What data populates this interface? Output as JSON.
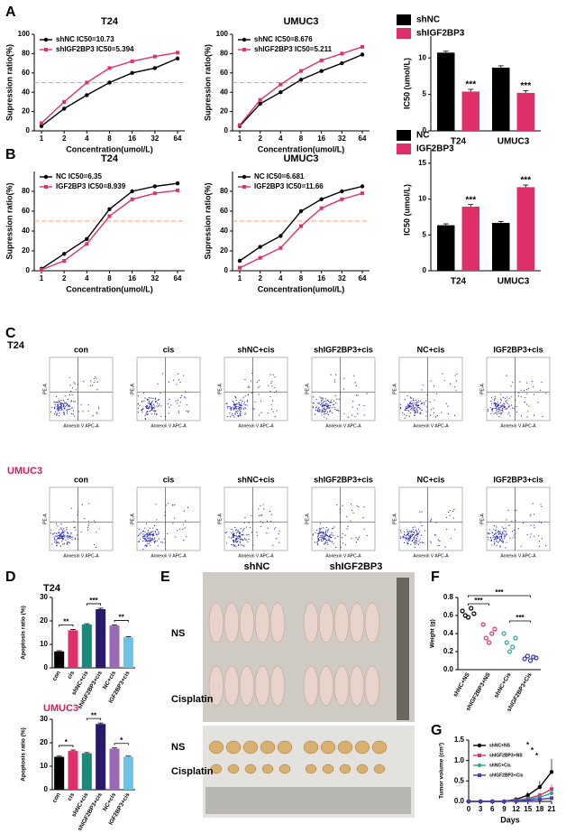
{
  "panels": [
    "A",
    "B",
    "C",
    "D",
    "E",
    "F",
    "G"
  ],
  "chart_data": [
    {
      "type": "line",
      "title": "T24",
      "categories": [
        "1",
        "2",
        "4",
        "8",
        "16",
        "32",
        "64"
      ],
      "xlabel": "Concentration(umol/L)",
      "ylabel": "Supression ratio(%)",
      "ylim": [
        0,
        100
      ],
      "yticks": [
        0,
        20,
        40,
        60,
        80,
        100
      ],
      "hline": 50,
      "hline_color": "#f0a070",
      "legend": "upper left",
      "series": [
        {
          "name": "shNC  IC50=10.73",
          "color": "#000000",
          "values": [
            5,
            23,
            37,
            50,
            60,
            65,
            75
          ]
        },
        {
          "name": "shIGF2BP3  IC50=5.394",
          "color": "#e0306a",
          "values": [
            8,
            30,
            50,
            65,
            72,
            77,
            81
          ]
        }
      ]
    },
    {
      "type": "line",
      "title": "UMUC3",
      "categories": [
        "1",
        "2",
        "4",
        "8",
        "16",
        "32",
        "64"
      ],
      "xlabel": "Concentration(umol/L)",
      "ylabel": "Supression ratio(%)",
      "ylim": [
        0,
        100
      ],
      "yticks": [
        0,
        20,
        40,
        60,
        80,
        100
      ],
      "hline": 50,
      "hline_color": "#f0a070",
      "legend": "upper left",
      "series": [
        {
          "name": "shNC  IC50=8.676",
          "color": "#000000",
          "values": [
            5,
            28,
            40,
            53,
            62,
            70,
            79
          ]
        },
        {
          "name": "shIGF2BP3  IC50=5.211",
          "color": "#e0306a",
          "values": [
            6,
            32,
            48,
            62,
            73,
            80,
            87
          ]
        }
      ]
    },
    {
      "type": "bar",
      "categories": [
        "T24",
        "UMUC3"
      ],
      "ylabel": "IC50 (umol/L)",
      "ylim": [
        0,
        13
      ],
      "yticks": [
        0,
        5,
        10
      ],
      "legend": "top",
      "series": [
        {
          "name": "shNC",
          "color": "#000000",
          "values": [
            10.73,
            8.676
          ],
          "errors": [
            0.2,
            0.25
          ]
        },
        {
          "name": "shIGF2BP3",
          "color": "#e0306a",
          "values": [
            5.394,
            5.211
          ],
          "errors": [
            0.3,
            0.3
          ]
        }
      ],
      "annotations": [
        {
          "text": "***",
          "category": "T24",
          "series": "shIGF2BP3"
        },
        {
          "text": "***",
          "category": "UMUC3",
          "series": "shIGF2BP3"
        }
      ]
    },
    {
      "type": "line",
      "title": "T24",
      "categories": [
        "1",
        "2",
        "4",
        "8",
        "16",
        "32",
        "64"
      ],
      "xlabel": "Concentration(umol/L)",
      "ylabel": "Supression ratio(%)",
      "ylim": [
        0,
        100
      ],
      "yticks": [
        0,
        20,
        40,
        60,
        80
      ],
      "hline": 50,
      "hline_color": "#f0a070",
      "legend": "upper left",
      "series": [
        {
          "name": "NC  IC50=6.35",
          "color": "#000000",
          "values": [
            2,
            17,
            32,
            62,
            80,
            85,
            88
          ]
        },
        {
          "name": "IGF2BP3  IC50=8.939",
          "color": "#e0306a",
          "values": [
            1,
            10,
            27,
            55,
            72,
            78,
            81
          ]
        }
      ]
    },
    {
      "type": "line",
      "title": "UMUC3",
      "categories": [
        "1",
        "2",
        "4",
        "8",
        "16",
        "32",
        "64"
      ],
      "xlabel": "Concentration(umol/L)",
      "ylabel": "Supression ratio(%)",
      "ylim": [
        0,
        100
      ],
      "yticks": [
        0,
        20,
        40,
        60,
        80
      ],
      "hline": 50,
      "hline_color": "#f0a070",
      "legend": "upper left",
      "series": [
        {
          "name": "NC  IC50=6.681",
          "color": "#000000",
          "values": [
            10,
            24,
            35,
            60,
            72,
            80,
            85
          ]
        },
        {
          "name": "IGF2BP3  IC50=11.66",
          "color": "#e0306a",
          "values": [
            3,
            13,
            23,
            45,
            63,
            72,
            78
          ]
        }
      ]
    },
    {
      "type": "bar",
      "categories": [
        "T24",
        "UMUC3"
      ],
      "ylabel": "IC50 (umol/L)",
      "ylim": [
        0,
        17
      ],
      "yticks": [
        0,
        5,
        10,
        15
      ],
      "legend": "top",
      "series": [
        {
          "name": "NC",
          "color": "#000000",
          "values": [
            6.35,
            6.681
          ],
          "errors": [
            0.2,
            0.2
          ]
        },
        {
          "name": "IGF2BP3",
          "color": "#e0306a",
          "values": [
            8.939,
            11.66
          ],
          "errors": [
            0.3,
            0.3
          ]
        }
      ],
      "annotations": [
        {
          "text": "***",
          "category": "T24",
          "series": "IGF2BP3"
        },
        {
          "text": "***",
          "category": "UMUC3",
          "series": "IGF2BP3"
        }
      ]
    },
    {
      "type": "bar",
      "title": "T24",
      "categories": [
        "con",
        "cis",
        "shNC+cis",
        "shIGF2BP3+cis",
        "NC+cis",
        "IGF2BP3+cis"
      ],
      "ylabel": "Apoptosis ratio (%)",
      "ylim": [
        0,
        30
      ],
      "yticks": [
        0,
        10,
        20,
        30
      ],
      "values": [
        7,
        16,
        18.5,
        25,
        18,
        13
      ],
      "errors": [
        0.3,
        0.4,
        0.3,
        0.4,
        0.3,
        0.3
      ],
      "colors": [
        "#000000",
        "#e0306a",
        "#1a8a7a",
        "#2a1a6a",
        "#9a6ab5",
        "#6cc3e8"
      ],
      "annotations": [
        {
          "text": "**",
          "categories": [
            "con",
            "cis"
          ]
        },
        {
          "text": "***",
          "categories": [
            "shNC+cis",
            "shIGF2BP3+cis"
          ]
        },
        {
          "text": "**",
          "categories": [
            "NC+cis",
            "IGF2BP3+cis"
          ]
        }
      ]
    },
    {
      "type": "bar",
      "title": "UMUC3",
      "title_color": "#d81b60",
      "categories": [
        "con",
        "cis",
        "shNC+cis",
        "shIGF2BP3+cis",
        "NC+cis",
        "IGF2BP3+cis"
      ],
      "ylabel": "Apoptosis ratio (%)",
      "ylim": [
        0,
        30
      ],
      "yticks": [
        0,
        10,
        20,
        30
      ],
      "values": [
        14,
        16.5,
        15.5,
        28,
        17.5,
        14
      ],
      "errors": [
        0.3,
        0.4,
        0.3,
        0.4,
        0.3,
        0.3
      ],
      "colors": [
        "#000000",
        "#e0306a",
        "#1a8a7a",
        "#2a1a6a",
        "#9a6ab5",
        "#6cc3e8"
      ],
      "annotations": [
        {
          "text": "*",
          "categories": [
            "con",
            "cis"
          ]
        },
        {
          "text": "**",
          "categories": [
            "shNC+cis",
            "shIGF2BP3+cis"
          ]
        },
        {
          "text": "*",
          "categories": [
            "NC+cis",
            "IGF2BP3+cis"
          ]
        }
      ]
    },
    {
      "type": "scatter",
      "ylabel": "Weight (g)",
      "ylim": [
        0,
        0.8
      ],
      "yticks": [
        {
          "value": 0,
          "label": "0.0"
        },
        0.2,
        0.4,
        0.6,
        0.8
      ],
      "series": [
        {
          "name": "shNC+NS",
          "color": "#000000",
          "values": [
            0.65,
            0.6,
            0.58,
            0.68,
            0.62
          ]
        },
        {
          "name": "shIGF2BP3+NS",
          "color": "#e0306a",
          "values": [
            0.5,
            0.35,
            0.3,
            0.4,
            0.45
          ]
        },
        {
          "name": "shNC+Cis",
          "color": "#2aa89a",
          "values": [
            0.4,
            0.3,
            0.2,
            0.25,
            0.35
          ]
        },
        {
          "name": "shIGF2BP3+Cis",
          "color": "#3a3aa0",
          "values": [
            0.12,
            0.15,
            0.1,
            0.14,
            0.13
          ]
        }
      ],
      "annotations": [
        {
          "text": "***",
          "categories": [
            "shNC+NS",
            "shIGF2BP3+NS"
          ]
        },
        {
          "text": "***",
          "categories": [
            "shNC+NS",
            "shIGF2BP3+Cis"
          ]
        },
        {
          "text": "***",
          "categories": [
            "shNC+Cis",
            "shIGF2BP3+Cis"
          ]
        }
      ]
    },
    {
      "type": "line",
      "x": [
        0,
        3,
        6,
        9,
        12,
        15,
        18,
        21
      ],
      "xlim": [
        0,
        21
      ],
      "xticks": [
        0,
        3,
        6,
        9,
        12,
        15,
        18,
        21
      ],
      "xlabel": "Days",
      "ylabel": "Tumor volume (cm³)",
      "ylim": [
        0,
        1.5
      ],
      "yticks": [
        {
          "value": 0,
          "label": "0.0"
        },
        0.5,
        {
          "value": 1,
          "label": "1.0"
        },
        1.5
      ],
      "legend": "upper left",
      "series": [
        {
          "name": "shNC+NS",
          "color": "#000000",
          "values": [
            0,
            0,
            0,
            0,
            0.05,
            0.15,
            0.35,
            0.72
          ],
          "errors": [
            0,
            0,
            0,
            0,
            0.02,
            0.08,
            0.15,
            0.32
          ]
        },
        {
          "name": "shIGF2BP3+NS",
          "color": "#e0306a",
          "values": [
            0,
            0,
            0,
            0,
            0.03,
            0.07,
            0.15,
            0.3
          ],
          "errors": [
            0,
            0,
            0,
            0,
            0.01,
            0.03,
            0.06,
            0.12
          ]
        },
        {
          "name": "shNC+Cis",
          "color": "#2aa89a",
          "values": [
            0,
            0,
            0,
            0,
            0.02,
            0.05,
            0.1,
            0.2
          ],
          "errors": [
            0,
            0,
            0,
            0,
            0.01,
            0.02,
            0.04,
            0.08
          ]
        },
        {
          "name": "shIGF2BP3+Cis",
          "color": "#4a3ab5",
          "values": [
            0,
            0,
            0,
            0,
            0.01,
            0.03,
            0.05,
            0.08
          ],
          "errors": [
            0,
            0,
            0,
            0,
            0.005,
            0.01,
            0.02,
            0.03
          ]
        }
      ],
      "annotations": [
        {
          "text": "*"
        },
        {
          "text": "*"
        },
        {
          "text": "*"
        }
      ]
    }
  ],
  "flow": {
    "ylabel": "PE-A",
    "xlabel": "Annexin V APC-A",
    "rows": [
      {
        "title": "T24",
        "panels": [
          "con",
          "cis",
          "shNC+cis",
          "shIGF2BP3+cis",
          "NC+cis",
          "IGF2BP3+cis"
        ]
      },
      {
        "title": "UMUC3",
        "panels": [
          "con",
          "cis",
          "shNC+cis",
          "shIGF2BP3+cis",
          "NC+cis",
          "IGF2BP3+cis"
        ]
      }
    ]
  },
  "photo": {
    "columns": [
      "shNC",
      "shIGF2BP3"
    ],
    "rows": [
      "NS",
      "Cisplatin"
    ],
    "tumor_rows": [
      "NS",
      "Cisplatin"
    ]
  }
}
